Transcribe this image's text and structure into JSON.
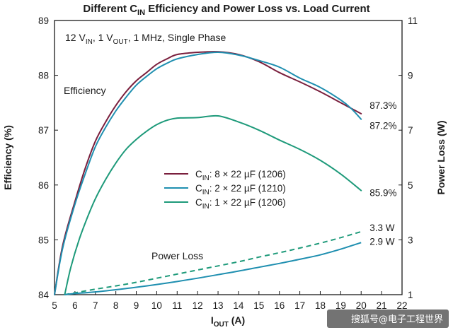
{
  "chart_data": {
    "type": "line",
    "title": {
      "before": "Different C",
      "sub": "IN",
      "after": " Efficiency and Power Loss vs. Load Current"
    },
    "subtitle": {
      "p1": "12 V",
      "s1": "IN",
      "p2": ", 1 V",
      "s2": "OUT",
      "p3": ", 1 MHz, Single Phase"
    },
    "xlabel": {
      "main": "I",
      "sub": "OUT",
      "after": " (A)"
    },
    "ylabel_left": "Efficiency (%)",
    "ylabel_right": "Power Loss (W)",
    "xlim": [
      5,
      22
    ],
    "ylim_left": [
      84,
      89
    ],
    "ylim_right": [
      1,
      11
    ],
    "x_ticks": [
      "5",
      "6",
      "7",
      "8",
      "9",
      "10",
      "11",
      "12",
      "13",
      "14",
      "15",
      "16",
      "17",
      "18",
      "19",
      "20",
      "21",
      "22"
    ],
    "y_left_ticks": [
      "84",
      "85",
      "86",
      "87",
      "88",
      "89"
    ],
    "y_right_ticks": [
      "1",
      "3",
      "5",
      "7",
      "9",
      "11"
    ],
    "grid": false,
    "annotations": {
      "efficiency": "Efficiency",
      "power_loss": "Power Loss"
    },
    "colors": {
      "cin_8x22": "#7a1f3d",
      "cin_2x22": "#1f8fb0",
      "cin_1x22": "#1e9a7a",
      "axis": "#1a1a1a"
    },
    "legend": [
      {
        "pre": "C",
        "sub": "IN",
        "text": ": 8 × 22 µF (1206)",
        "color": "#7a1f3d"
      },
      {
        "pre": "C",
        "sub": "IN",
        "text": ": 2 × 22 µF (1210)",
        "color": "#1f8fb0"
      },
      {
        "pre": "C",
        "sub": "IN",
        "text": ": 1 × 22 µF (1206)",
        "color": "#1e9a7a"
      }
    ],
    "efficiency_series": [
      {
        "name": "CIN: 8 × 22 µF (1206)",
        "color": "#7a1f3d",
        "x": [
          5.0,
          5.4,
          6.0,
          6.5,
          7.0,
          7.5,
          8.0,
          8.5,
          9.0,
          9.5,
          10.0,
          10.5,
          11.0,
          12.0,
          13.0,
          14.0,
          15.0,
          16.0,
          17.0,
          18.0,
          19.0,
          20.0
        ],
        "y": [
          84.0,
          84.9,
          85.7,
          86.3,
          86.8,
          87.15,
          87.45,
          87.7,
          87.9,
          88.05,
          88.2,
          88.3,
          88.38,
          88.42,
          88.43,
          88.38,
          88.25,
          88.05,
          87.88,
          87.7,
          87.5,
          87.3
        ],
        "end_label": "87.3%"
      },
      {
        "name": "CIN: 2 × 22 µF (1210)",
        "color": "#1f8fb0",
        "x": [
          5.0,
          5.4,
          6.0,
          6.5,
          7.0,
          7.5,
          8.0,
          8.5,
          9.0,
          9.5,
          10.0,
          10.5,
          11.0,
          12.0,
          13.0,
          14.0,
          15.0,
          16.0,
          17.0,
          18.0,
          19.0,
          19.5,
          20.0
        ],
        "y": [
          84.0,
          84.85,
          85.65,
          86.2,
          86.7,
          87.05,
          87.35,
          87.6,
          87.82,
          87.98,
          88.12,
          88.22,
          88.3,
          88.38,
          88.42,
          88.37,
          88.27,
          88.15,
          87.95,
          87.78,
          87.55,
          87.4,
          87.2
        ],
        "end_label": "87.2%"
      },
      {
        "name": "CIN: 1 × 22 µF (1206)",
        "color": "#1e9a7a",
        "x": [
          5.5,
          5.8,
          6.2,
          6.6,
          7.0,
          7.5,
          8.0,
          8.5,
          9.0,
          9.5,
          10.0,
          10.5,
          11.0,
          12.0,
          13.0,
          14.0,
          15.0,
          16.0,
          17.0,
          18.0,
          19.0,
          20.0
        ],
        "y": [
          84.0,
          84.5,
          85.0,
          85.4,
          85.75,
          86.1,
          86.4,
          86.65,
          86.83,
          86.98,
          87.1,
          87.18,
          87.22,
          87.23,
          87.26,
          87.15,
          87.0,
          86.82,
          86.65,
          86.45,
          86.2,
          85.9
        ],
        "end_label": "85.9%"
      }
    ],
    "power_loss_series": [
      {
        "name": "Power loss, 1 × 22 µF (dashed)",
        "style": "dashed",
        "color": "#1e9a7a",
        "x": [
          5.5,
          6.0,
          7.0,
          8.0,
          9.0,
          10.0,
          11.0,
          12.0,
          13.0,
          14.0,
          15.0,
          16.0,
          17.0,
          18.0,
          19.0,
          20.0
        ],
        "y": [
          1.0,
          1.07,
          1.2,
          1.32,
          1.45,
          1.6,
          1.75,
          1.9,
          2.05,
          2.2,
          2.37,
          2.53,
          2.7,
          2.88,
          3.08,
          3.3
        ],
        "end_label": "3.3 W"
      },
      {
        "name": "Power loss, 8 × 22 µF / 2 × 22 µF (solid)",
        "style": "solid",
        "color": "#1f8fb0",
        "x": [
          5.5,
          6.0,
          7.0,
          8.0,
          9.0,
          10.0,
          11.0,
          12.0,
          13.0,
          14.0,
          15.0,
          16.0,
          17.0,
          18.0,
          19.0,
          20.0
        ],
        "y": [
          1.0,
          1.04,
          1.1,
          1.18,
          1.27,
          1.37,
          1.48,
          1.6,
          1.73,
          1.86,
          2.0,
          2.14,
          2.29,
          2.45,
          2.66,
          2.9
        ],
        "end_label": "2.9 W"
      }
    ]
  },
  "watermark": "搜狐号@电子工程世界"
}
